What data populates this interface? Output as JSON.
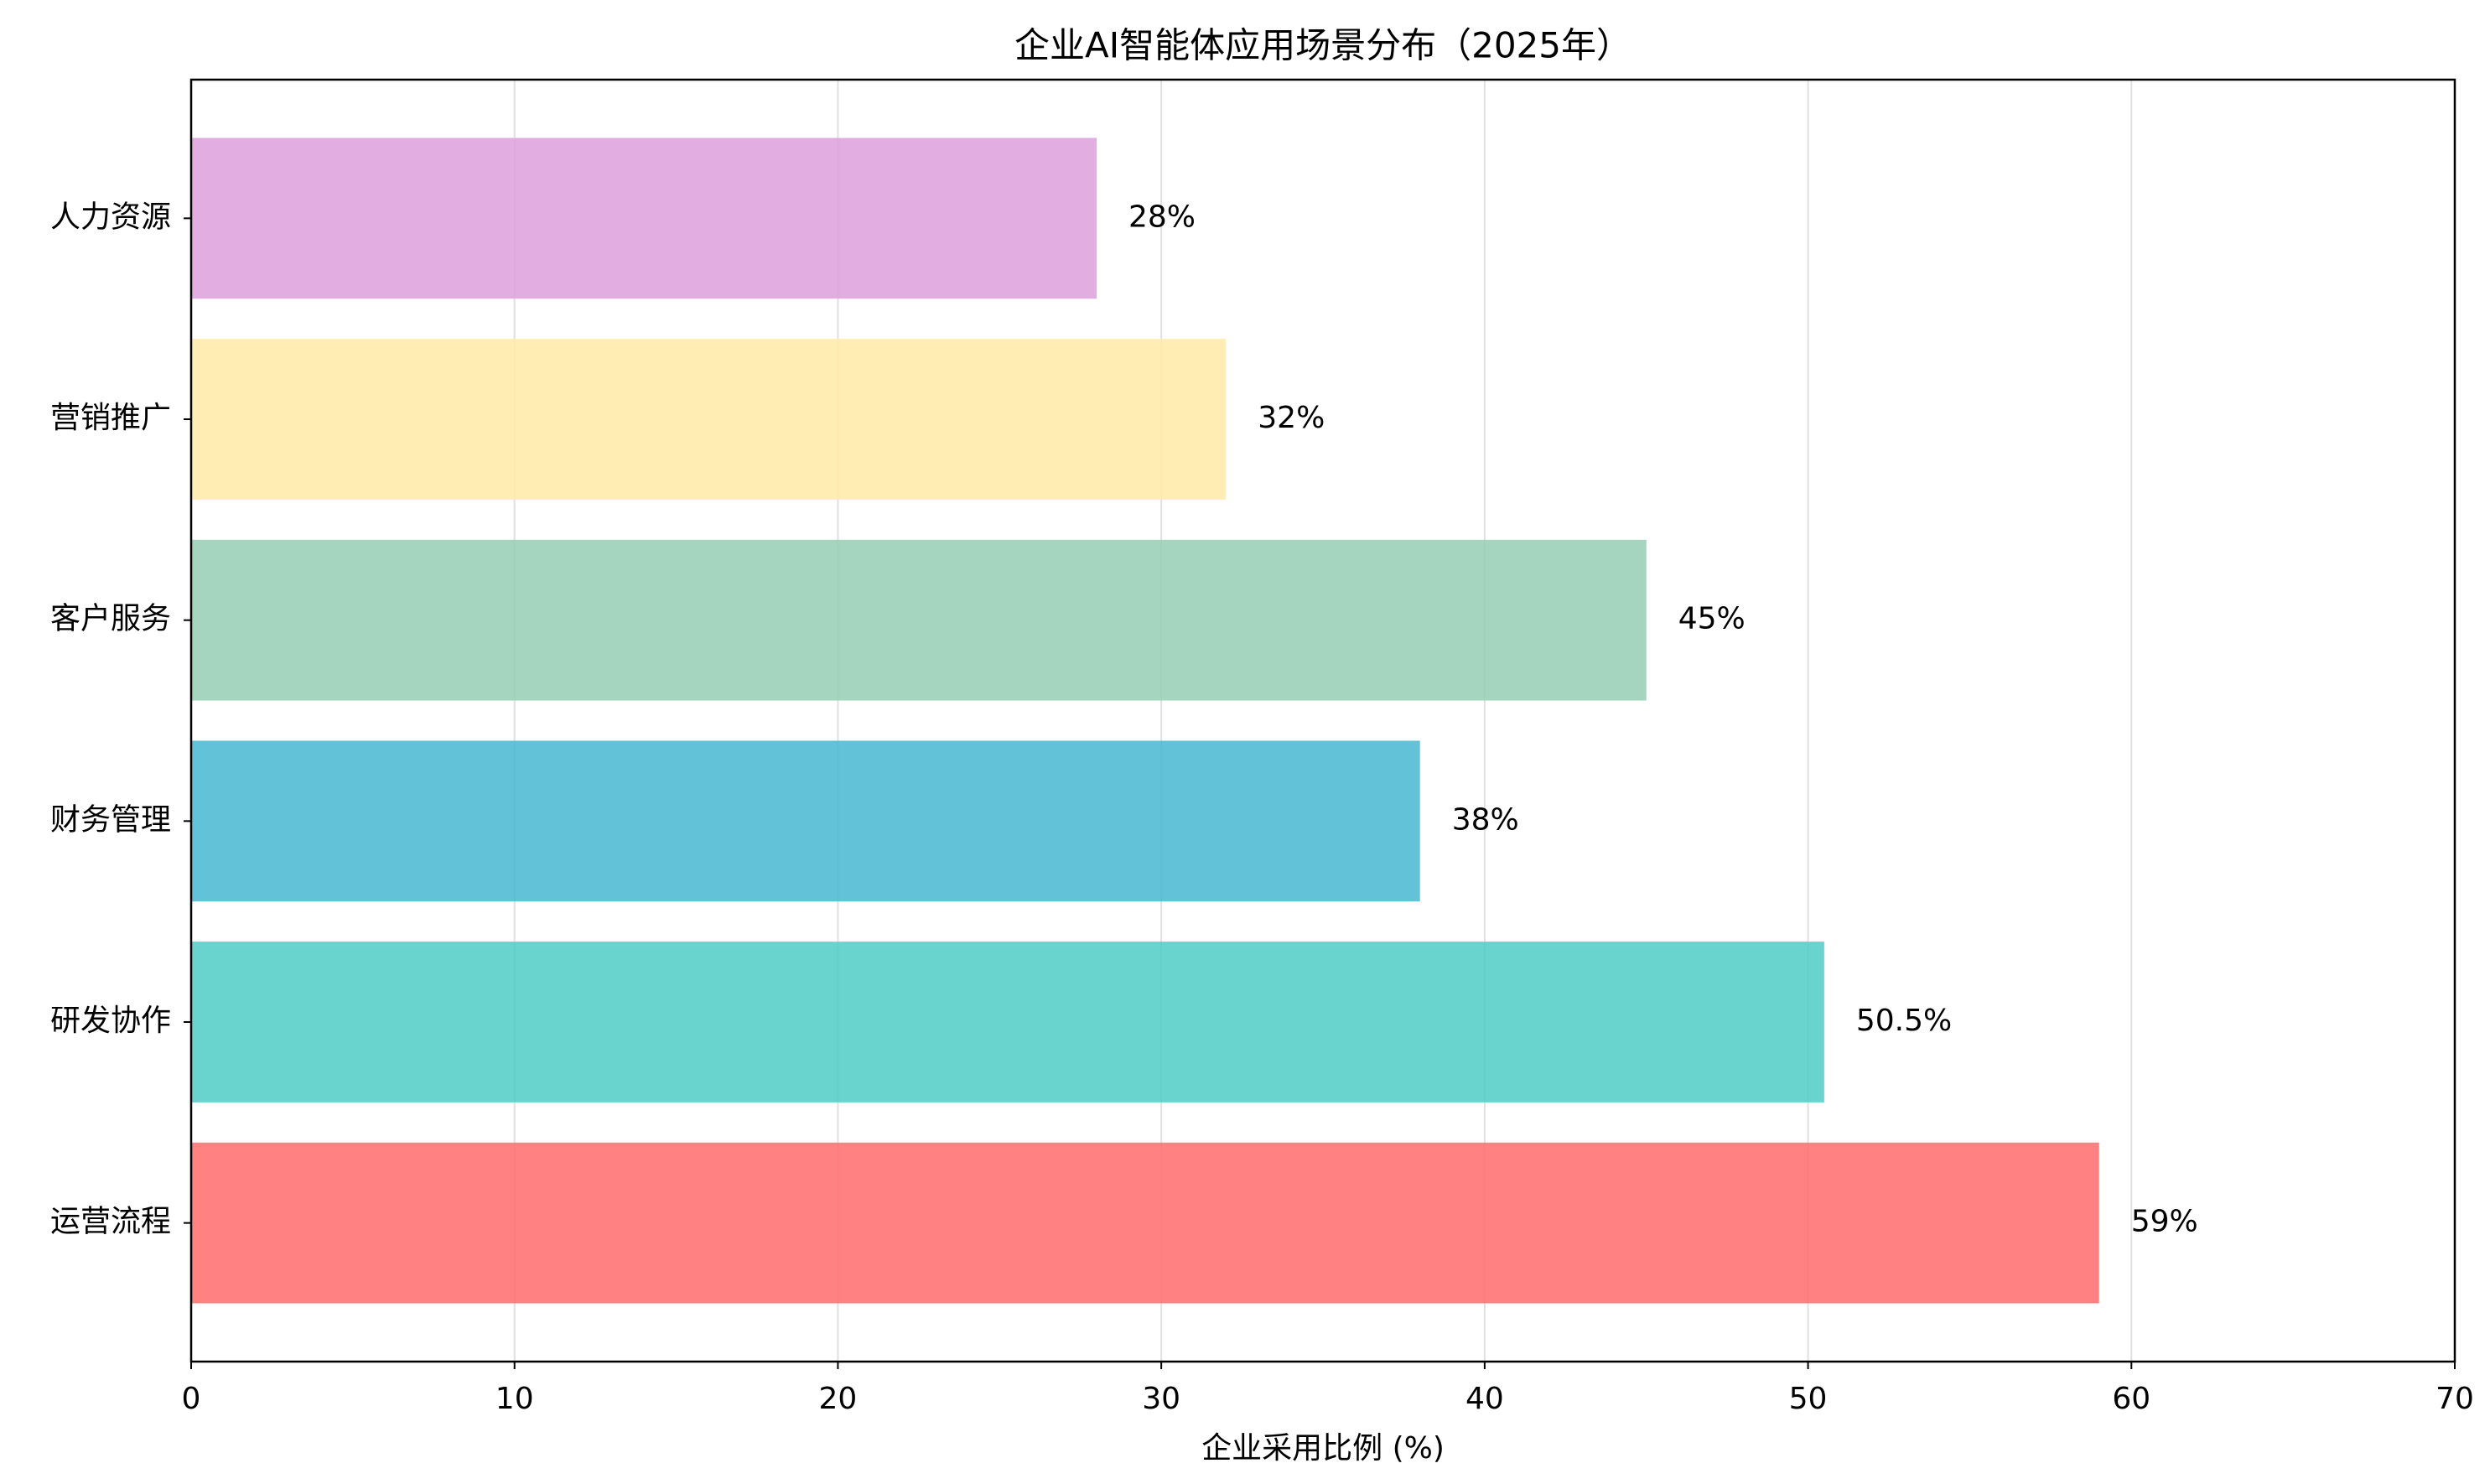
{
  "chart_data": {
    "type": "barh",
    "title": "企业AI智能体应用场景分布（2025年）",
    "x_label": "企业采用比例 (%)",
    "categories": [
      "运营流程",
      "研发协作",
      "财务管理",
      "客户服务",
      "营销推广",
      "人力资源"
    ],
    "values": [
      59,
      50.5,
      38,
      45,
      32,
      28
    ],
    "value_labels": [
      "59%",
      "50.5%",
      "38%",
      "45%",
      "32%",
      "28%"
    ],
    "colors": [
      "#FF6B6B",
      "#4ECDC4",
      "#45B7D1",
      "#96CEB4",
      "#FFEAA7",
      "#DDA0DD"
    ],
    "xlim": [
      0,
      70
    ],
    "xticks": [
      0,
      10,
      20,
      30,
      40,
      50,
      60,
      70
    ],
    "grid": true
  }
}
